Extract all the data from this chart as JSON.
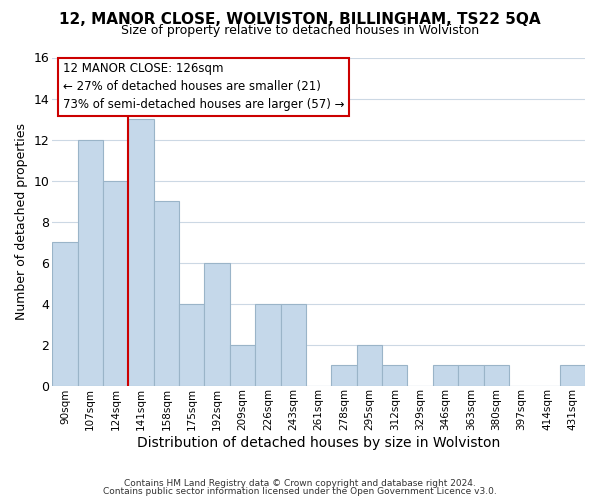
{
  "title1": "12, MANOR CLOSE, WOLVISTON, BILLINGHAM, TS22 5QA",
  "title2": "Size of property relative to detached houses in Wolviston",
  "xlabel": "Distribution of detached houses by size in Wolviston",
  "ylabel": "Number of detached properties",
  "categories": [
    "90sqm",
    "107sqm",
    "124sqm",
    "141sqm",
    "158sqm",
    "175sqm",
    "192sqm",
    "209sqm",
    "226sqm",
    "243sqm",
    "261sqm",
    "278sqm",
    "295sqm",
    "312sqm",
    "329sqm",
    "346sqm",
    "363sqm",
    "380sqm",
    "397sqm",
    "414sqm",
    "431sqm"
  ],
  "values": [
    7,
    12,
    10,
    13,
    9,
    4,
    6,
    2,
    4,
    4,
    0,
    1,
    2,
    1,
    0,
    1,
    1,
    1,
    0,
    0,
    1
  ],
  "bar_color": "#c5d8ea",
  "bar_edge_color": "#9ab4c8",
  "reference_line_color": "#cc0000",
  "reference_line_index": 2.5,
  "ylim": [
    0,
    16
  ],
  "yticks": [
    0,
    2,
    4,
    6,
    8,
    10,
    12,
    14,
    16
  ],
  "annotation_title": "12 MANOR CLOSE: 126sqm",
  "annotation_line1": "← 27% of detached houses are smaller (21)",
  "annotation_line2": "73% of semi-detached houses are larger (57) →",
  "annotation_box_facecolor": "#ffffff",
  "annotation_box_edgecolor": "#cc0000",
  "footer1": "Contains HM Land Registry data © Crown copyright and database right 2024.",
  "footer2": "Contains public sector information licensed under the Open Government Licence v3.0.",
  "background_color": "#ffffff",
  "grid_color": "#ccd8e4"
}
